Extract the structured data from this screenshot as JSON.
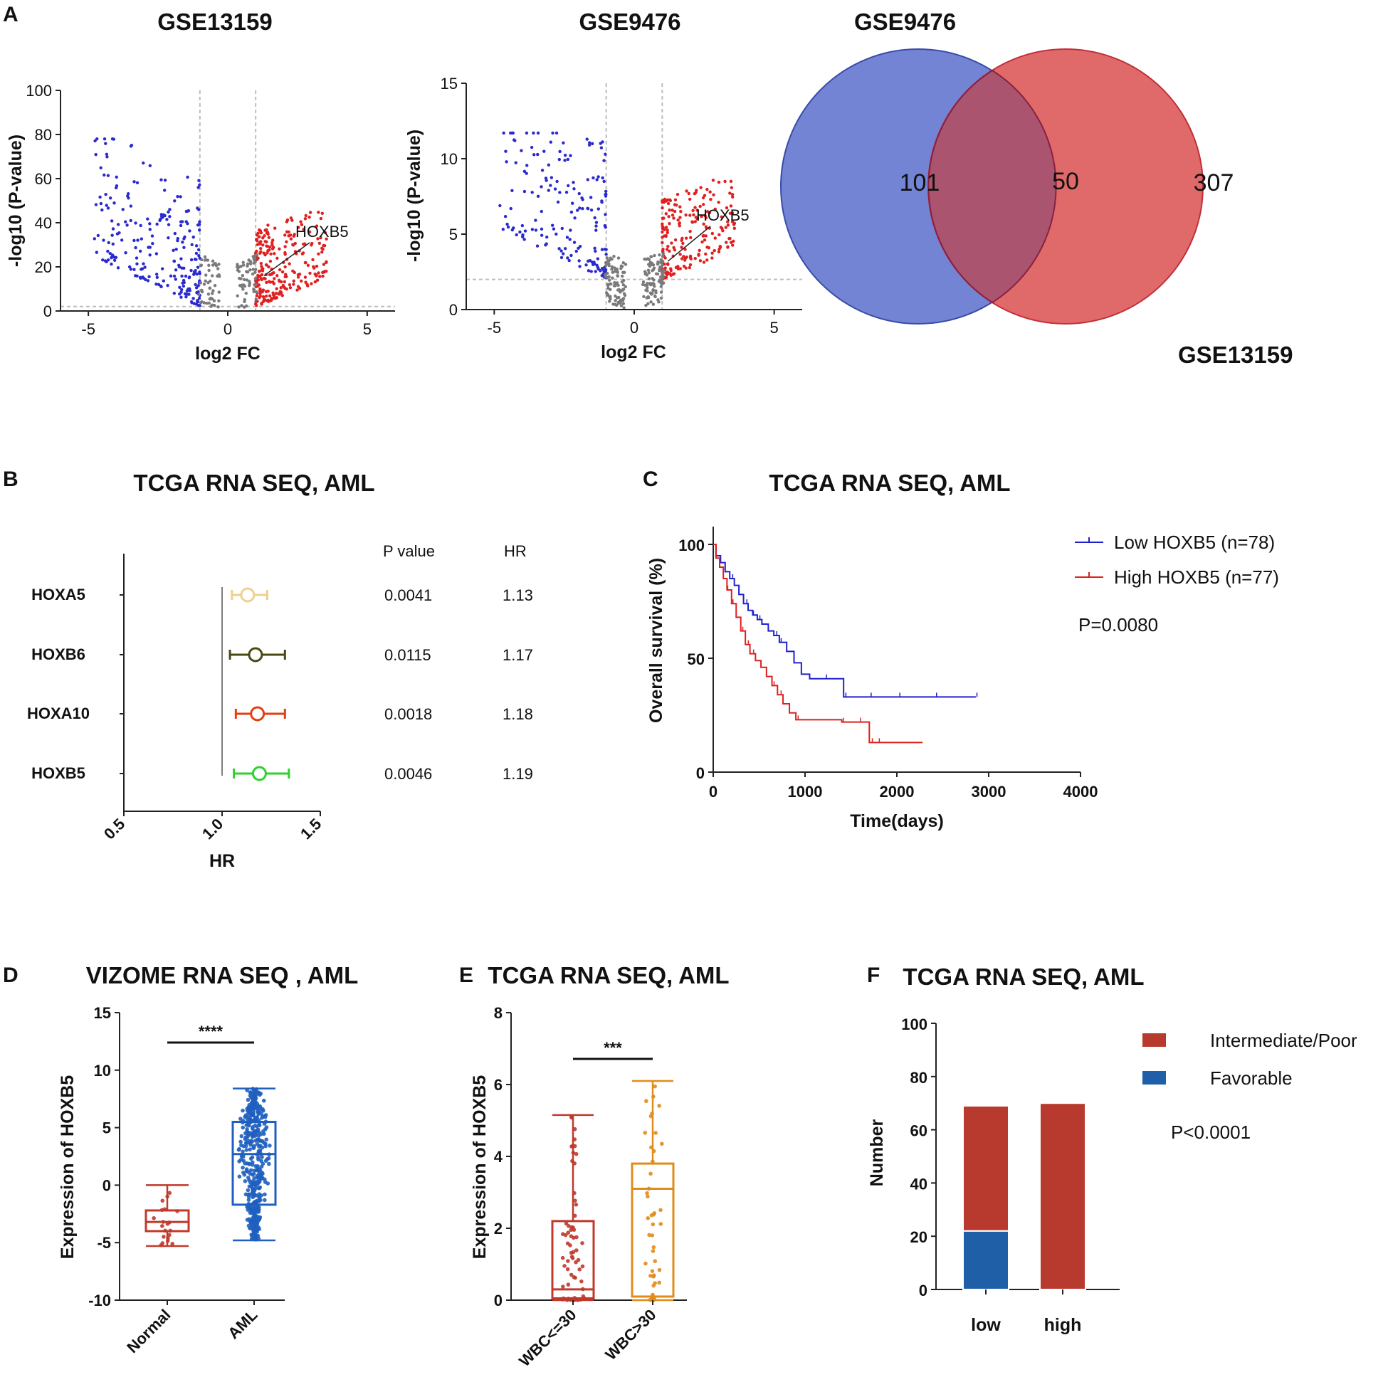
{
  "panel_labels": {
    "a": "A",
    "b": "B",
    "c": "C",
    "d": "D",
    "e": "E",
    "f": "F"
  },
  "chart_data": [
    {
      "id": "volcano_gse13159",
      "type": "scatter",
      "title": "GSE13159",
      "xlabel": "log2 FC",
      "ylabel": "-log10 (P-value)",
      "xlim": [
        -6,
        6
      ],
      "ylim": [
        0,
        100
      ],
      "xticks": [
        "-5",
        "0",
        "5"
      ],
      "yticks": [
        "0",
        "20",
        "40",
        "60",
        "80",
        "100"
      ],
      "thresholds": {
        "log2fc": [
          -1,
          1
        ],
        "neglog10p": 2
      },
      "annotation": {
        "label": "HOXB5",
        "x": 1.3,
        "y": 16
      },
      "colors": {
        "down": "#2a2acf",
        "up": "#e02020",
        "ns": "#7a7a7a"
      }
    },
    {
      "id": "volcano_gse9476",
      "type": "scatter",
      "title": "GSE9476",
      "xlabel": "log2 FC",
      "ylabel": "-log10 (P-value)",
      "xlim": [
        -6,
        6
      ],
      "ylim": [
        0,
        15
      ],
      "xticks": [
        "-5",
        "0",
        "5"
      ],
      "yticks": [
        "0",
        "5",
        "10",
        "15"
      ],
      "thresholds": {
        "log2fc": [
          -1,
          1
        ],
        "neglog10p": 2
      },
      "annotation": {
        "label": "HOXB5",
        "x": 1.2,
        "y": 3.2
      },
      "colors": {
        "down": "#2a2acf",
        "up": "#e02020",
        "ns": "#7a7a7a"
      }
    },
    {
      "id": "venn",
      "type": "venn",
      "sets": [
        {
          "name": "GSE9476",
          "only": "101",
          "color": "#7484d4",
          "stroke": "#3a4aaa"
        },
        {
          "name": "GSE13159",
          "only": "307",
          "color": "#e06a6a",
          "stroke": "#c0303a"
        }
      ],
      "overlap": "50",
      "overlap_color": "#aa5470"
    },
    {
      "id": "forest",
      "type": "forest",
      "title": "TCGA RNA SEQ, AML",
      "xlabel": "HR",
      "xlim": [
        0.5,
        1.5
      ],
      "xticks": [
        "0.5",
        "1.0",
        "1.5"
      ],
      "col_headers": {
        "p": "P value",
        "hr": "HR"
      },
      "rows": [
        {
          "gene": "HOXA5",
          "hr": 1.13,
          "lo": 1.05,
          "hi": 1.23,
          "p": "0.0041",
          "hr_label": "1.13",
          "color": "#f0d090"
        },
        {
          "gene": "HOXB6",
          "hr": 1.17,
          "lo": 1.04,
          "hi": 1.32,
          "p": "0.0115",
          "hr_label": "1.17",
          "color": "#4a4a10"
        },
        {
          "gene": "HOXA10",
          "hr": 1.18,
          "lo": 1.07,
          "hi": 1.32,
          "p": "0.0018",
          "hr_label": "1.18",
          "color": "#e04010"
        },
        {
          "gene": "HOXB5",
          "hr": 1.19,
          "lo": 1.06,
          "hi": 1.34,
          "p": "0.0046",
          "hr_label": "1.19",
          "color": "#30d030"
        }
      ]
    },
    {
      "id": "km",
      "type": "line",
      "title": "TCGA RNA SEQ, AML",
      "xlabel": "Time(days)",
      "ylabel": "Overall survival (%)",
      "xlim": [
        0,
        4000
      ],
      "ylim": [
        0,
        100
      ],
      "xticks": [
        "0",
        "1000",
        "2000",
        "3000",
        "4000"
      ],
      "yticks": [
        "0",
        "50",
        "100"
      ],
      "pvalue": "P=0.0080",
      "series": [
        {
          "name": "Low HOXB5 (n=78)",
          "color": "#2020cc",
          "x": [
            0,
            30,
            80,
            130,
            180,
            230,
            280,
            330,
            380,
            430,
            480,
            530,
            600,
            660,
            720,
            800,
            880,
            960,
            1050,
            1200,
            1350,
            1420,
            1500,
            1700,
            2000,
            2400,
            2860
          ],
          "y": [
            100,
            95,
            92,
            88,
            85,
            82,
            78,
            74,
            71,
            69,
            67,
            65,
            62,
            60,
            57,
            53,
            48,
            43,
            41,
            41,
            41,
            33,
            33,
            33,
            33,
            33,
            33
          ]
        },
        {
          "name": "High HOXB5 (n=77)",
          "color": "#dd2020",
          "x": [
            0,
            30,
            70,
            110,
            150,
            200,
            250,
            300,
            350,
            400,
            460,
            520,
            580,
            640,
            700,
            760,
            830,
            900,
            1000,
            1200,
            1400,
            1600,
            1700,
            1800,
            2000,
            2280
          ],
          "y": [
            100,
            94,
            90,
            85,
            80,
            74,
            68,
            62,
            56,
            52,
            49,
            46,
            42,
            38,
            34,
            30,
            26,
            23,
            23,
            23,
            22,
            22,
            13,
            13,
            13,
            13
          ]
        }
      ]
    },
    {
      "id": "box_vizome",
      "type": "box",
      "title": "VIZOME RNA SEQ , AML",
      "ylabel": "Expression of HOXB5",
      "ylim": [
        -10,
        15
      ],
      "yticks": [
        "-10",
        "-5",
        "0",
        "5",
        "10",
        "15"
      ],
      "categories": [
        "Normal",
        "AML"
      ],
      "significance": "****",
      "boxes": [
        {
          "min": -5.3,
          "q1": -4.0,
          "median": -3.2,
          "q3": -2.2,
          "max": 0,
          "n": 20,
          "color": "#c0392b"
        },
        {
          "min": -4.8,
          "q1": -1.7,
          "median": 2.7,
          "q3": 5.5,
          "max": 8.4,
          "n": 420,
          "color": "#1f5fbf"
        }
      ]
    },
    {
      "id": "box_wbc",
      "type": "box",
      "title": "TCGA RNA SEQ, AML",
      "ylabel": "Expression of HOXB5",
      "ylim": [
        0,
        8
      ],
      "yticks": [
        "0",
        "2",
        "4",
        "6",
        "8"
      ],
      "categories": [
        "WBC<=30",
        "WBC>30"
      ],
      "significance": "***",
      "boxes": [
        {
          "min": 0,
          "q1": 0.05,
          "median": 0.3,
          "q3": 2.2,
          "max": 5.15,
          "n": 70,
          "color": "#c0392b"
        },
        {
          "min": 0,
          "q1": 0.1,
          "median": 3.1,
          "q3": 3.8,
          "max": 6.1,
          "n": 50,
          "color": "#e08c1a"
        }
      ]
    },
    {
      "id": "stacked",
      "type": "bar",
      "title": "TCGA RNA SEQ, AML",
      "ylabel": "Number",
      "ylim": [
        0,
        100
      ],
      "yticks": [
        "0",
        "20",
        "40",
        "60",
        "80",
        "100"
      ],
      "categories": [
        "low",
        "high"
      ],
      "series": [
        {
          "name": "Favorable",
          "values": [
            22,
            0
          ],
          "color": "#1f5fa8"
        },
        {
          "name": "Intermediate/Poor",
          "values": [
            47,
            70
          ],
          "color": "#b83a2e"
        }
      ],
      "pvalue": "P<0.0001"
    }
  ]
}
